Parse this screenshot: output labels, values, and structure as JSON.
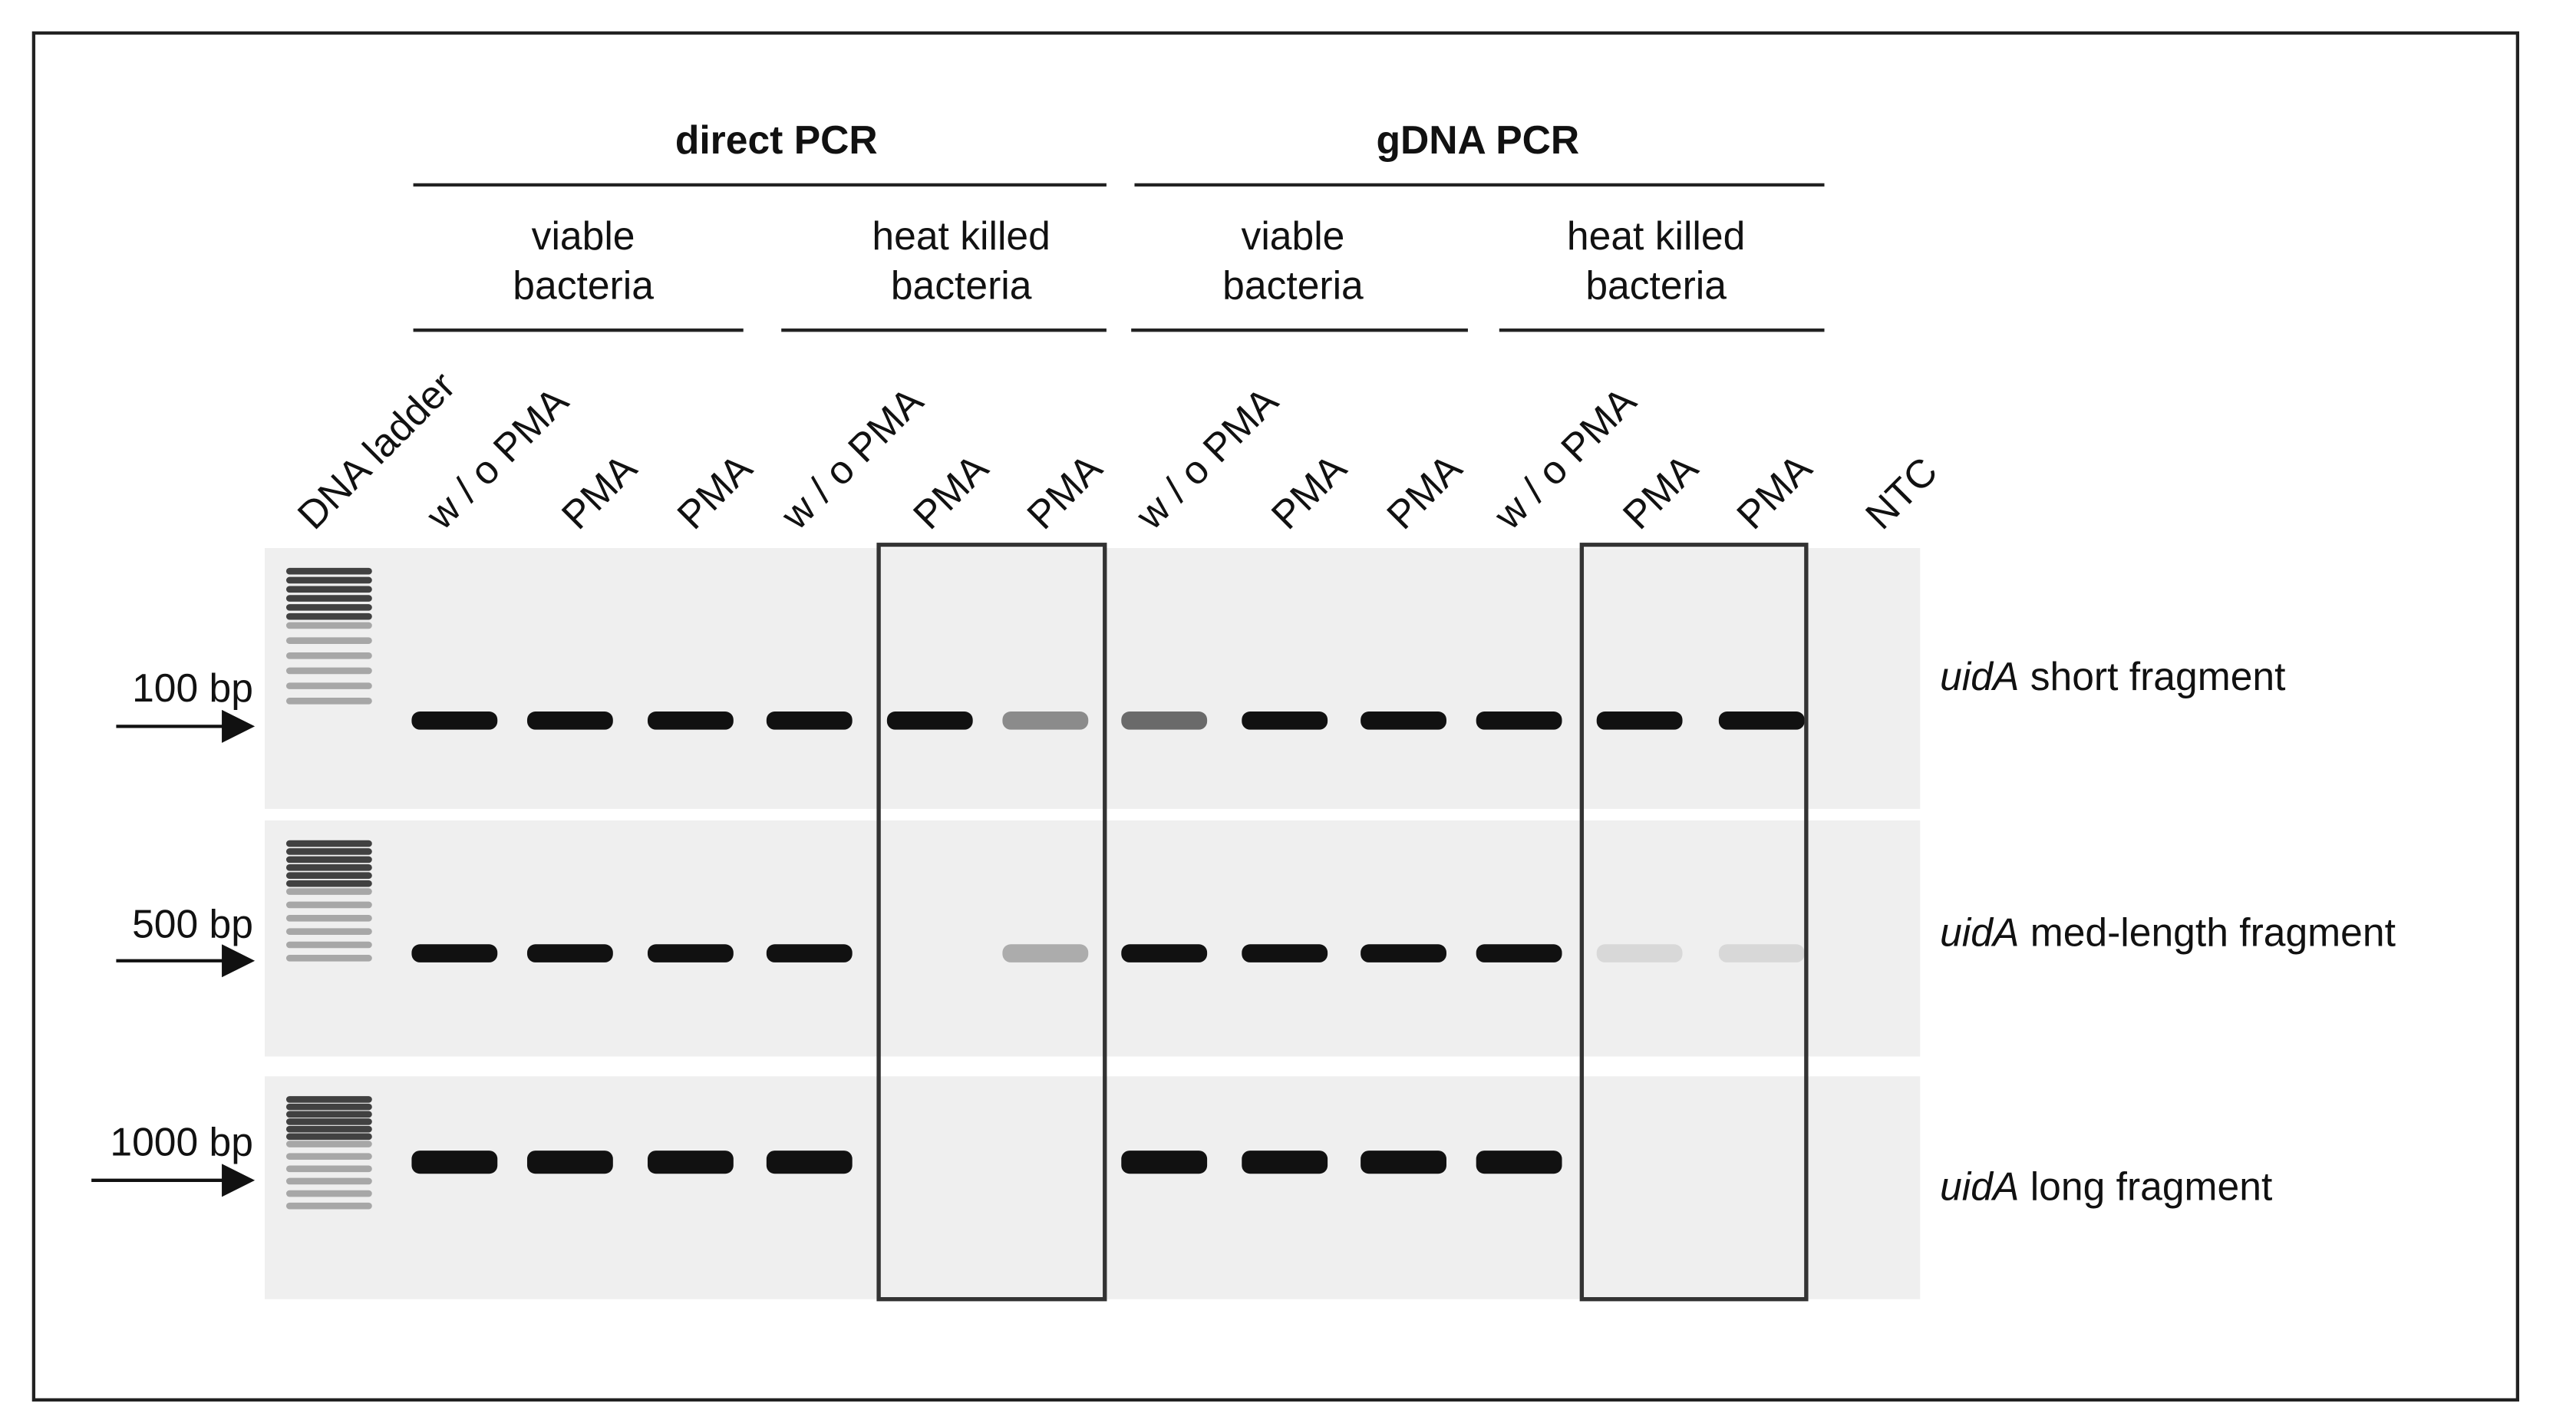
{
  "headers": [
    {
      "title": "direct PCR",
      "groups": [
        {
          "lines": [
            "viable",
            "bacteria"
          ]
        },
        {
          "lines": [
            "heat killed",
            "bacteria"
          ]
        }
      ]
    },
    {
      "title": "gDNA PCR",
      "groups": [
        {
          "lines": [
            "viable",
            "bacteria"
          ]
        },
        {
          "lines": [
            "heat killed",
            "bacteria"
          ]
        }
      ]
    }
  ],
  "lanes": [
    "DNA ladder",
    "w / o PMA",
    "PMA",
    "PMA",
    "w / o PMA",
    "PMA",
    "PMA",
    "w / o PMA",
    "PMA",
    "PMA",
    "w / o PMA",
    "PMA",
    "PMA",
    "NTC"
  ],
  "markers": [
    "100 bp",
    "500 bp",
    "1000 bp"
  ],
  "fragments": [
    {
      "gene": "uidA",
      "label": "short fragment"
    },
    {
      "gene": "uidA",
      "label": "med-length fragment"
    },
    {
      "gene": "uidA",
      "label": "long fragment"
    }
  ]
}
